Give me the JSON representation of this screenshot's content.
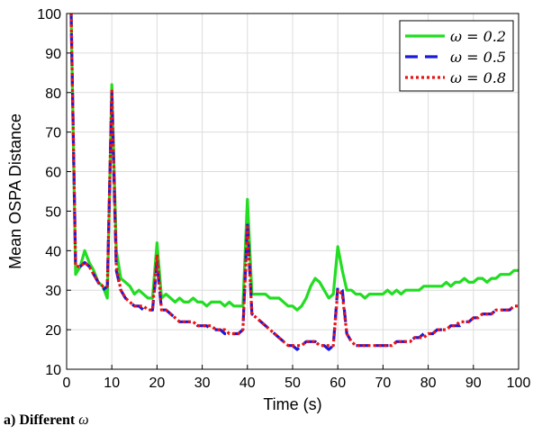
{
  "caption": {
    "prefix": "a) Different",
    "symbol": "ω"
  },
  "chart_data": {
    "type": "line",
    "xlabel": "Time (s)",
    "ylabel": "Mean OSPA Distance",
    "xlim": [
      0,
      100
    ],
    "ylim": [
      10,
      100
    ],
    "xticks": [
      0,
      10,
      20,
      30,
      40,
      50,
      60,
      70,
      80,
      90,
      100
    ],
    "yticks": [
      10,
      20,
      30,
      40,
      50,
      60,
      70,
      80,
      90,
      100
    ],
    "grid": true,
    "legend_position": "top-right",
    "series": [
      {
        "name": "ω = 0.2",
        "color": "#22dd22",
        "dash": "solid",
        "x": [
          1,
          2,
          3,
          4,
          5,
          6,
          7,
          8,
          9,
          10,
          11,
          12,
          13,
          14,
          15,
          16,
          17,
          18,
          19,
          20,
          21,
          22,
          23,
          24,
          25,
          26,
          27,
          28,
          29,
          30,
          31,
          32,
          33,
          34,
          35,
          36,
          37,
          38,
          39,
          40,
          41,
          42,
          43,
          44,
          45,
          46,
          47,
          48,
          49,
          50,
          51,
          52,
          53,
          54,
          55,
          56,
          57,
          58,
          59,
          60,
          61,
          62,
          63,
          64,
          65,
          66,
          67,
          68,
          69,
          70,
          71,
          72,
          73,
          74,
          75,
          76,
          77,
          78,
          79,
          80,
          81,
          82,
          83,
          84,
          85,
          86,
          87,
          88,
          89,
          90,
          91,
          92,
          93,
          94,
          95,
          96,
          97,
          98,
          99,
          100
        ],
        "y": [
          100,
          34,
          36,
          40,
          37,
          35,
          32,
          31,
          28,
          82,
          40,
          33,
          32,
          31,
          29,
          30,
          29,
          28,
          28,
          42,
          28,
          29,
          28,
          27,
          28,
          27,
          27,
          28,
          27,
          27,
          26,
          27,
          27,
          27,
          26,
          27,
          26,
          26,
          26,
          53,
          29,
          29,
          29,
          29,
          28,
          28,
          28,
          27,
          26,
          26,
          25,
          26,
          28,
          31,
          33,
          32,
          30,
          28,
          29,
          41,
          35,
          30,
          30,
          29,
          29,
          28,
          29,
          29,
          29,
          29,
          30,
          29,
          30,
          29,
          30,
          30,
          30,
          30,
          31,
          31,
          31,
          31,
          31,
          32,
          31,
          32,
          32,
          33,
          32,
          32,
          33,
          33,
          32,
          33,
          33,
          34,
          34,
          34,
          35,
          35
        ]
      },
      {
        "name": "ω = 0.5",
        "color": "#1a1adc",
        "dash": "14,8",
        "x": [
          1,
          2,
          3,
          4,
          5,
          6,
          7,
          8,
          9,
          10,
          11,
          12,
          13,
          14,
          15,
          16,
          17,
          18,
          19,
          20,
          21,
          22,
          23,
          24,
          25,
          26,
          27,
          28,
          29,
          30,
          31,
          32,
          33,
          34,
          35,
          36,
          37,
          38,
          39,
          40,
          41,
          42,
          43,
          44,
          45,
          46,
          47,
          48,
          49,
          50,
          51,
          52,
          53,
          54,
          55,
          56,
          57,
          58,
          59,
          60,
          61,
          62,
          63,
          64,
          65,
          66,
          67,
          68,
          69,
          70,
          71,
          72,
          73,
          74,
          75,
          76,
          77,
          78,
          79,
          80,
          81,
          82,
          83,
          84,
          85,
          86,
          87,
          88,
          89,
          90,
          91,
          92,
          93,
          94,
          95,
          96,
          97,
          98,
          99,
          100
        ],
        "y": [
          100,
          36,
          36,
          37,
          36,
          34,
          32,
          30,
          31,
          80,
          35,
          30,
          28,
          27,
          26,
          26,
          25,
          25,
          25,
          37,
          25,
          25,
          24,
          23,
          22,
          22,
          22,
          22,
          21,
          21,
          21,
          20,
          20,
          20,
          19,
          19,
          19,
          19,
          20,
          47,
          24,
          23,
          22,
          21,
          20,
          19,
          18,
          17,
          16,
          16,
          15,
          16,
          17,
          17,
          17,
          16,
          16,
          15,
          16,
          31,
          30,
          19,
          17,
          16,
          16,
          16,
          16,
          16,
          16,
          16,
          16,
          16,
          17,
          17,
          17,
          17,
          18,
          18,
          19,
          19,
          19,
          20,
          20,
          20,
          21,
          21,
          21,
          22,
          22,
          23,
          23,
          24,
          24,
          24,
          25,
          25,
          25,
          25,
          26,
          26
        ]
      },
      {
        "name": "ω = 0.8",
        "color": "#ee1111",
        "dash": "3,3",
        "x": [
          1,
          2,
          3,
          4,
          5,
          6,
          7,
          8,
          9,
          10,
          11,
          12,
          13,
          14,
          15,
          16,
          17,
          18,
          19,
          20,
          21,
          22,
          23,
          24,
          25,
          26,
          27,
          28,
          29,
          30,
          31,
          32,
          33,
          34,
          35,
          36,
          37,
          38,
          39,
          40,
          41,
          42,
          43,
          44,
          45,
          46,
          47,
          48,
          49,
          50,
          51,
          52,
          53,
          54,
          55,
          56,
          57,
          58,
          59,
          60,
          61,
          62,
          63,
          64,
          65,
          66,
          67,
          68,
          69,
          70,
          71,
          72,
          73,
          74,
          75,
          76,
          77,
          78,
          79,
          80,
          81,
          82,
          83,
          84,
          85,
          86,
          87,
          88,
          89,
          90,
          91,
          92,
          93,
          94,
          95,
          96,
          97,
          98,
          99,
          100
        ],
        "y": [
          100,
          36,
          36,
          37,
          36,
          34,
          32,
          31,
          31,
          81,
          36,
          30,
          28,
          27,
          26,
          26,
          26,
          25,
          25,
          39,
          25,
          25,
          24,
          23,
          22,
          22,
          22,
          22,
          21,
          21,
          21,
          21,
          20,
          20,
          20,
          19,
          19,
          19,
          20,
          46,
          24,
          23,
          22,
          21,
          20,
          19,
          18,
          17,
          16,
          16,
          16,
          16,
          17,
          17,
          17,
          16,
          16,
          16,
          16,
          30,
          29,
          19,
          17,
          16,
          16,
          16,
          16,
          16,
          16,
          16,
          16,
          16,
          17,
          17,
          17,
          17,
          18,
          18,
          18,
          19,
          19,
          20,
          20,
          20,
          21,
          21,
          22,
          22,
          22,
          23,
          23,
          24,
          24,
          24,
          25,
          25,
          25,
          25,
          26,
          26
        ]
      }
    ]
  }
}
